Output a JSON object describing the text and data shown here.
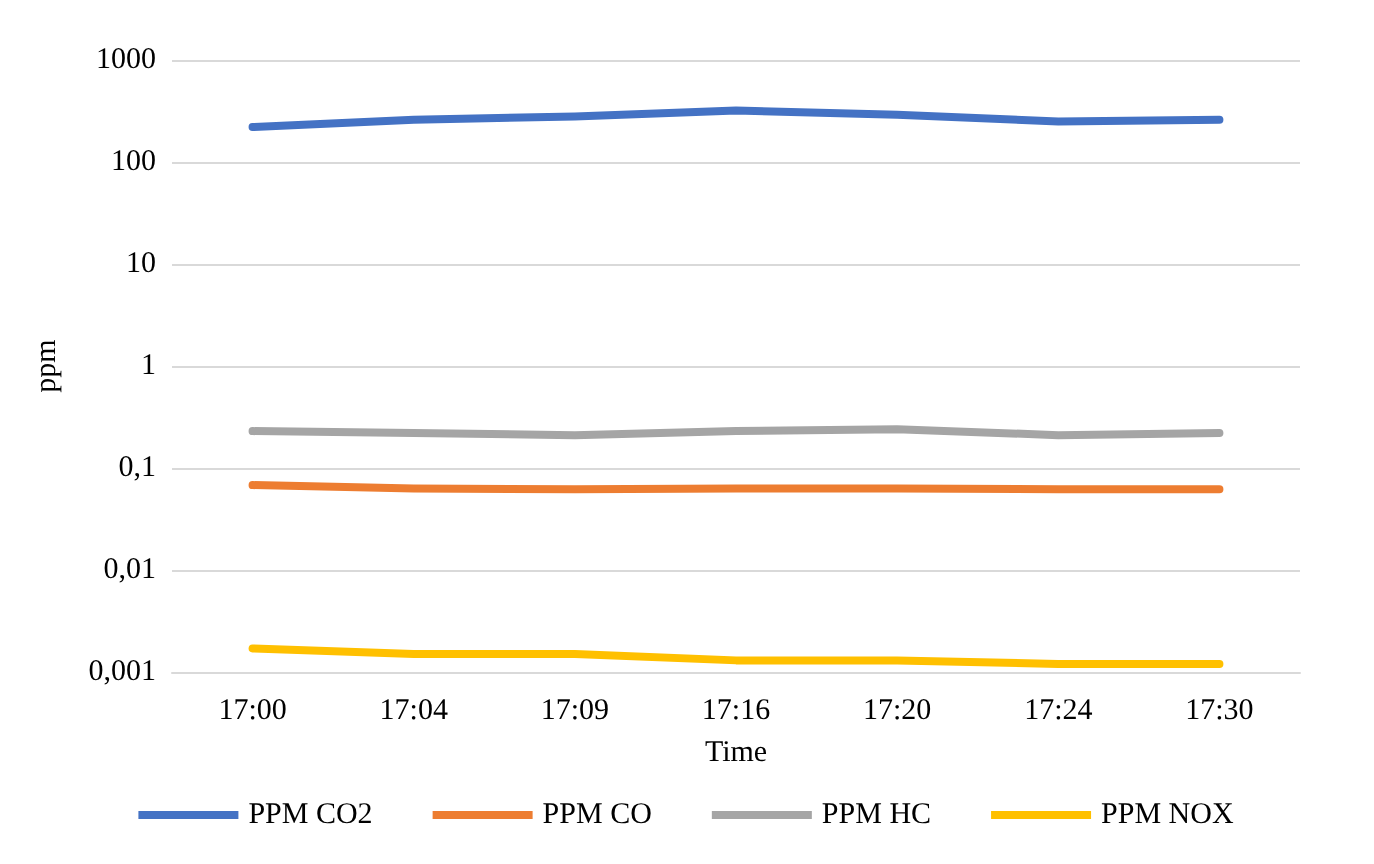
{
  "chart_data": {
    "type": "line",
    "xlabel": "Time",
    "ylabel": "ppm",
    "categories": [
      "17:00",
      "17:04",
      "17:09",
      "17:16",
      "17:20",
      "17:24",
      "17:30"
    ],
    "series": [
      {
        "name": "PPM CO2",
        "color": "#4472c4",
        "values": [
          220,
          260,
          280,
          320,
          290,
          250,
          260
        ]
      },
      {
        "name": "PPM CO",
        "color": "#ed7d31",
        "values": [
          0.068,
          0.063,
          0.062,
          0.063,
          0.063,
          0.062,
          0.062
        ]
      },
      {
        "name": "PPM HC",
        "color": "#a5a5a5",
        "values": [
          0.23,
          0.22,
          0.21,
          0.23,
          0.24,
          0.21,
          0.22
        ]
      },
      {
        "name": "PPM NOX",
        "color": "#ffc000",
        "values": [
          0.0017,
          0.0015,
          0.0015,
          0.0013,
          0.0013,
          0.0012,
          0.0012
        ]
      }
    ],
    "log": "y",
    "ylim": [
      0.001,
      1000
    ],
    "yticks": [
      {
        "value": 0.001,
        "label": "0,001"
      },
      {
        "value": 0.01,
        "label": "0,01"
      },
      {
        "value": 0.1,
        "label": "0,1"
      },
      1,
      10,
      100,
      1000
    ],
    "grid": "y",
    "legend": "bottom",
    "marker": "none",
    "line_style": "solid"
  }
}
